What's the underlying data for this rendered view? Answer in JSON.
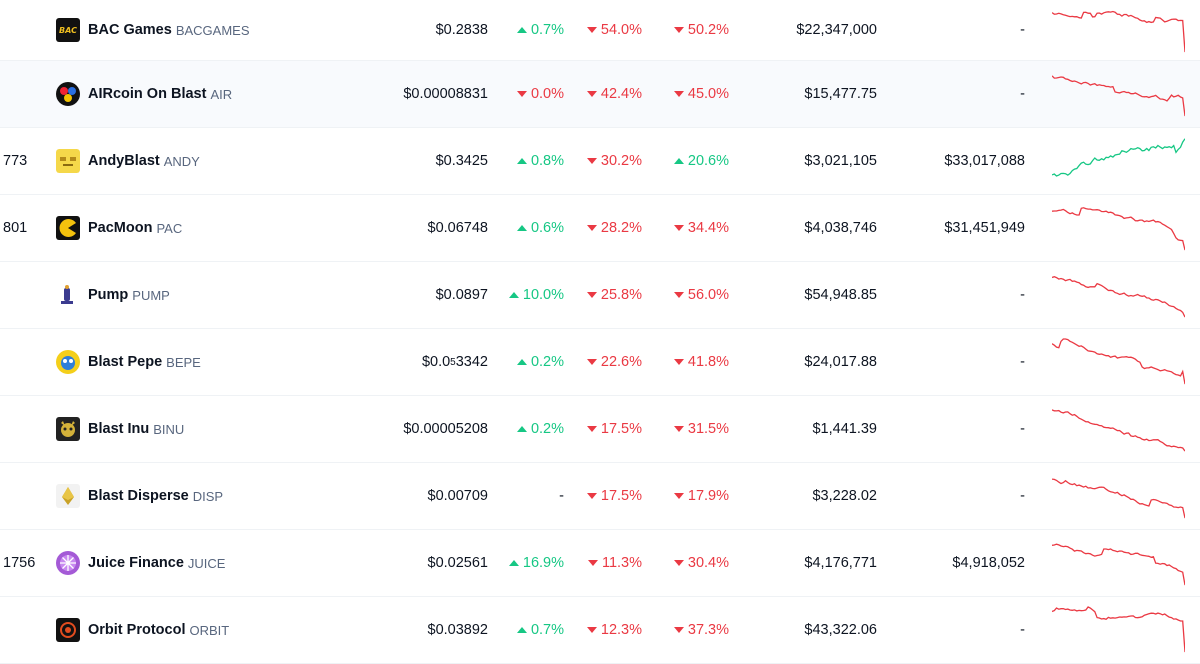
{
  "colors": {
    "up": "#16c784",
    "down": "#ea3943"
  },
  "rows": [
    {
      "rank": "",
      "name": "BAC Games",
      "symbol": "BACGAMES",
      "icon": "bac-games-icon",
      "price": "$0.2838",
      "p1h": "0.7%",
      "p1h_dir": "up",
      "p24h": "54.0%",
      "p24h_dir": "down",
      "p7d": "50.2%",
      "p7d_dir": "down",
      "volume": "$22,347,000",
      "mcap": "-",
      "spark_dir": "down"
    },
    {
      "rank": "",
      "name": "AIRcoin On Blast",
      "symbol": "AIR",
      "icon": "aircoin-icon",
      "price": "$0.00008831",
      "p1h": "0.0%",
      "p1h_dir": "down",
      "p24h": "42.4%",
      "p24h_dir": "down",
      "p7d": "45.0%",
      "p7d_dir": "down",
      "volume": "$15,477.75",
      "mcap": "-",
      "spark_dir": "down"
    },
    {
      "rank": "773",
      "name": "AndyBlast",
      "symbol": "ANDY",
      "icon": "andyblast-icon",
      "price": "$0.3425",
      "p1h": "0.8%",
      "p1h_dir": "up",
      "p24h": "30.2%",
      "p24h_dir": "down",
      "p7d": "20.6%",
      "p7d_dir": "up",
      "volume": "$3,021,105",
      "mcap": "$33,017,088",
      "spark_dir": "up"
    },
    {
      "rank": "801",
      "name": "PacMoon",
      "symbol": "PAC",
      "icon": "pacmoon-icon",
      "price": "$0.06748",
      "p1h": "0.6%",
      "p1h_dir": "up",
      "p24h": "28.2%",
      "p24h_dir": "down",
      "p7d": "34.4%",
      "p7d_dir": "down",
      "volume": "$4,038,746",
      "mcap": "$31,451,949",
      "spark_dir": "down"
    },
    {
      "rank": "",
      "name": "Pump",
      "symbol": "PUMP",
      "icon": "pump-icon",
      "price": "$0.0897",
      "p1h": "10.0%",
      "p1h_dir": "up",
      "p24h": "25.8%",
      "p24h_dir": "down",
      "p7d": "56.0%",
      "p7d_dir": "down",
      "volume": "$54,948.85",
      "mcap": "-",
      "spark_dir": "down"
    },
    {
      "rank": "",
      "name": "Blast Pepe",
      "symbol": "BEPE",
      "icon": "blast-pepe-icon",
      "price": "$0.0",
      "price_sub": "5",
      "price_tail": "3342",
      "p1h": "0.2%",
      "p1h_dir": "up",
      "p24h": "22.6%",
      "p24h_dir": "down",
      "p7d": "41.8%",
      "p7d_dir": "down",
      "volume": "$24,017.88",
      "mcap": "-",
      "spark_dir": "down"
    },
    {
      "rank": "",
      "name": "Blast Inu",
      "symbol": "BINU",
      "icon": "blast-inu-icon",
      "price": "$0.00005208",
      "p1h": "0.2%",
      "p1h_dir": "up",
      "p24h": "17.5%",
      "p24h_dir": "down",
      "p7d": "31.5%",
      "p7d_dir": "down",
      "volume": "$1,441.39",
      "mcap": "-",
      "spark_dir": "down"
    },
    {
      "rank": "",
      "name": "Blast Disperse",
      "symbol": "DISP",
      "icon": "blast-disperse-icon",
      "price": "$0.00709",
      "p1h": "-",
      "p1h_dir": "flat",
      "p24h": "17.5%",
      "p24h_dir": "down",
      "p7d": "17.9%",
      "p7d_dir": "down",
      "volume": "$3,228.02",
      "mcap": "-",
      "spark_dir": "down"
    },
    {
      "rank": "1756",
      "name": "Juice Finance",
      "symbol": "JUICE",
      "icon": "juice-finance-icon",
      "price": "$0.02561",
      "p1h": "16.9%",
      "p1h_dir": "up",
      "p24h": "11.3%",
      "p24h_dir": "down",
      "p7d": "30.4%",
      "p7d_dir": "down",
      "volume": "$4,176,771",
      "mcap": "$4,918,052",
      "spark_dir": "down"
    },
    {
      "rank": "",
      "name": "Orbit Protocol",
      "symbol": "ORBIT",
      "icon": "orbit-protocol-icon",
      "price": "$0.03892",
      "p1h": "0.7%",
      "p1h_dir": "up",
      "p24h": "12.3%",
      "p24h_dir": "down",
      "p7d": "37.3%",
      "p7d_dir": "down",
      "volume": "$43,322.06",
      "mcap": "-",
      "spark_dir": "down"
    }
  ]
}
